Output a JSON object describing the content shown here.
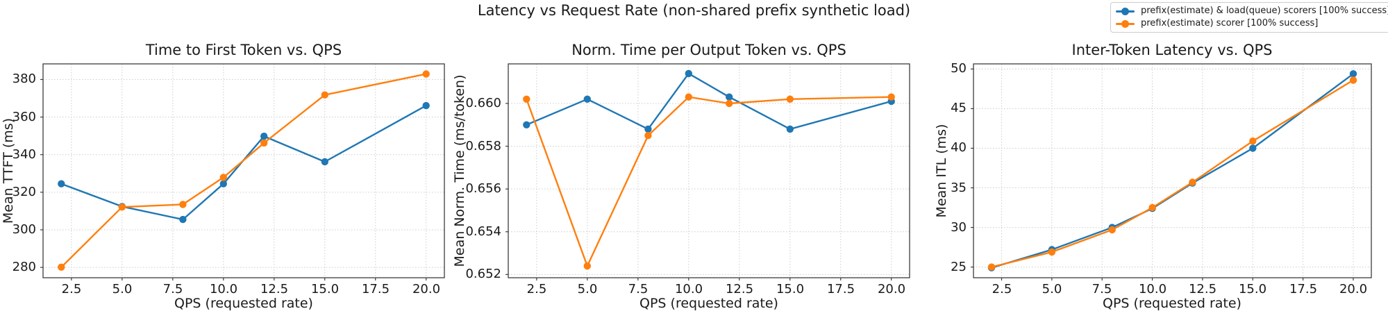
{
  "figure": {
    "suptitle": "Latency vs Request Rate (non-shared prefix synthetic load)"
  },
  "legend": {
    "position": "figure-top-right",
    "entries": [
      {
        "label": "prefix(estimate) & load(queue) scorers [100% success]",
        "color": "#1f77b4",
        "marker": "circle-on-line"
      },
      {
        "label": "prefix(estimate) scorer [100% success]",
        "color": "#ff7f0e",
        "marker": "circle-on-line"
      }
    ]
  },
  "chart_data": [
    {
      "type": "line",
      "title": "Time to First Token vs. QPS",
      "xlabel": "QPS (requested rate)",
      "ylabel": "Mean TTFT (ms)",
      "x": [
        2,
        5,
        8,
        10,
        12,
        15,
        20
      ],
      "series": [
        {
          "name": "prefix(estimate) & load(queue) scorers [100% success]",
          "color": "#1f77b4",
          "values": [
            324.5,
            312.4,
            305.5,
            324.5,
            349.8,
            336.2,
            366.1
          ]
        },
        {
          "name": "prefix(estimate) scorer [100% success]",
          "color": "#ff7f0e",
          "values": [
            280.1,
            312.1,
            313.5,
            327.9,
            346.2,
            371.8,
            382.9
          ]
        }
      ],
      "xlim": [
        1.1,
        20.9
      ],
      "ylim": [
        274.5,
        388.3
      ],
      "xticks": [
        2.5,
        5.0,
        7.5,
        10.0,
        12.5,
        15.0,
        17.5,
        20.0
      ],
      "yticks": [
        280,
        300,
        320,
        340,
        360,
        380
      ],
      "xtick_labels": [
        "2.5",
        "5.0",
        "7.5",
        "10.0",
        "12.5",
        "15.0",
        "17.5",
        "20.0"
      ],
      "ytick_labels": [
        "280",
        "300",
        "320",
        "340",
        "360",
        "380"
      ],
      "grid": true
    },
    {
      "type": "line",
      "title": "Norm. Time per Output Token vs. QPS",
      "xlabel": "QPS (requested rate)",
      "ylabel": "Mean Norm. Time (ms/token)",
      "x": [
        2,
        5,
        8,
        10,
        12,
        15,
        20
      ],
      "series": [
        {
          "name": "prefix(estimate) & load(queue) scorers [100% success]",
          "color": "#1f77b4",
          "values": [
            0.659,
            0.6602,
            0.6588,
            0.6614,
            0.6603,
            0.6588,
            0.6601
          ]
        },
        {
          "name": "prefix(estimate) scorer [100% success]",
          "color": "#ff7f0e",
          "values": [
            0.6602,
            0.6524,
            0.6585,
            0.6603,
            0.66,
            0.6602,
            0.6603
          ]
        }
      ],
      "xlim": [
        1.1,
        20.9
      ],
      "ylim": [
        0.65185,
        0.66185
      ],
      "xticks": [
        2.5,
        5.0,
        7.5,
        10.0,
        12.5,
        15.0,
        17.5,
        20.0
      ],
      "yticks": [
        0.652,
        0.654,
        0.656,
        0.658,
        0.66
      ],
      "xtick_labels": [
        "2.5",
        "5.0",
        "7.5",
        "10.0",
        "12.5",
        "15.0",
        "17.5",
        "20.0"
      ],
      "ytick_labels": [
        "0.652",
        "0.654",
        "0.656",
        "0.658",
        "0.660"
      ],
      "grid": true
    },
    {
      "type": "line",
      "title": "Inter-Token Latency vs. QPS",
      "xlabel": "QPS (requested rate)",
      "ylabel": "Mean ITL (ms)",
      "x": [
        2,
        5,
        8,
        10,
        12,
        15,
        20
      ],
      "series": [
        {
          "name": "prefix(estimate) & load(queue) scorers [100% success]",
          "color": "#1f77b4",
          "values": [
            24.9,
            27.2,
            30.0,
            32.4,
            35.6,
            40.0,
            49.4
          ]
        },
        {
          "name": "prefix(estimate) scorer [100% success]",
          "color": "#ff7f0e",
          "values": [
            25.0,
            26.9,
            29.7,
            32.5,
            35.7,
            40.9,
            48.6
          ]
        }
      ],
      "xlim": [
        1.1,
        20.9
      ],
      "ylim": [
        23.65,
        50.65
      ],
      "xticks": [
        2.5,
        5.0,
        7.5,
        10.0,
        12.5,
        15.0,
        17.5,
        20.0
      ],
      "yticks": [
        25,
        30,
        35,
        40,
        45,
        50
      ],
      "xtick_labels": [
        "2.5",
        "5.0",
        "7.5",
        "10.0",
        "12.5",
        "15.0",
        "17.5",
        "20.0"
      ],
      "ytick_labels": [
        "25",
        "30",
        "35",
        "40",
        "45",
        "50"
      ],
      "grid": true
    }
  ]
}
